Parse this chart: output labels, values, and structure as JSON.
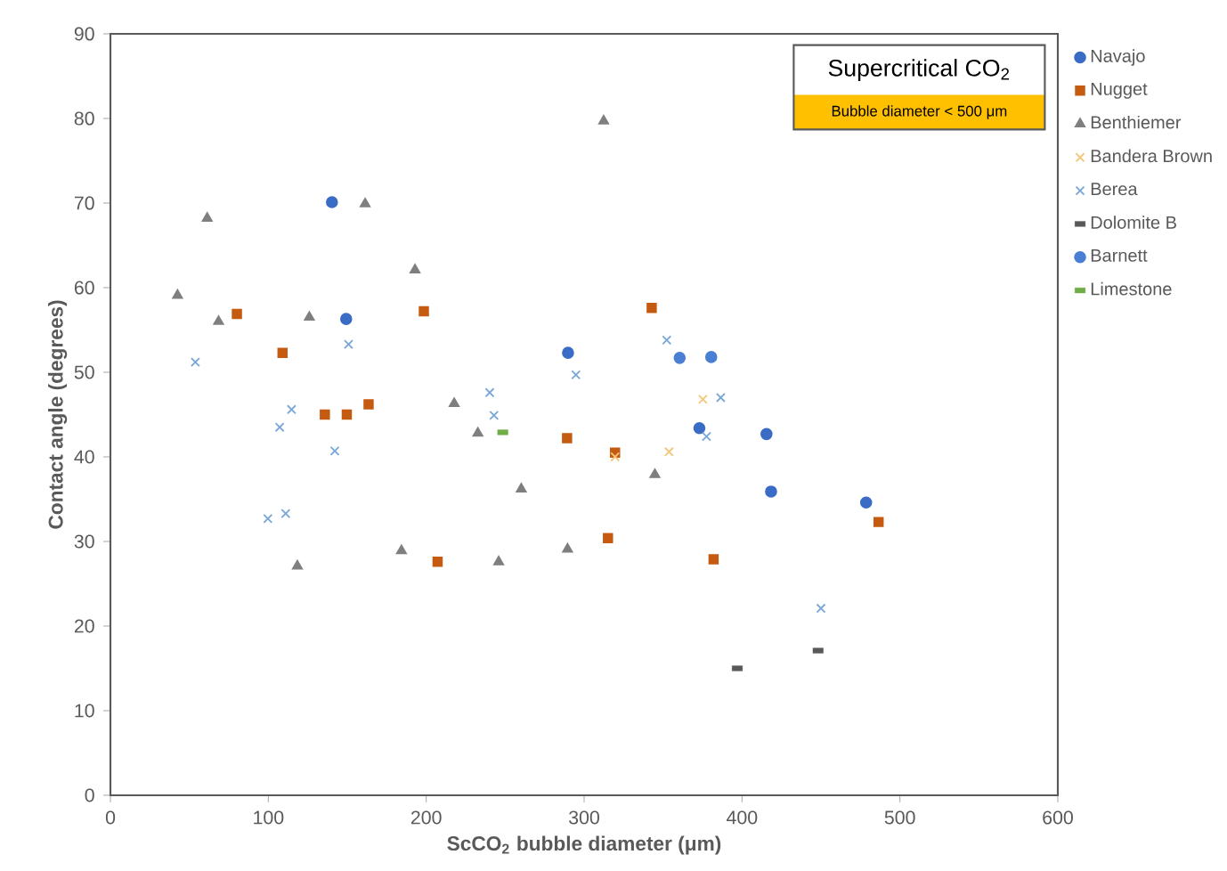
{
  "chart_data": {
    "type": "scatter",
    "xlabel": "ScCO$_{2}$ bubble diameter (μm)",
    "ylabel": "Contact angle (degrees)",
    "xlim": [
      0,
      600
    ],
    "xticks": [
      0,
      100,
      200,
      300,
      400,
      500,
      600
    ],
    "ylim": [
      0,
      90
    ],
    "yticks": [
      0,
      10,
      20,
      30,
      40,
      50,
      60,
      70,
      80,
      90
    ],
    "grid": false,
    "legend": "right",
    "annotations": [
      "Supercritical CO$_{2}$",
      "Bubble diameter < 500 μm"
    ],
    "series": [
      {
        "name": "Navajo",
        "color": "#3a6cc6",
        "marker": "circle",
        "x": [
          140.3,
          149.3,
          289.8,
          373,
          415.5,
          418.4,
          478.6
        ],
        "values": [
          70.1,
          56.3,
          52.3,
          43.4,
          42.7,
          35.9,
          34.6
        ]
      },
      {
        "name": "Nugget",
        "color": "#c55a11",
        "marker": "square",
        "x": [
          80.1,
          109,
          198.5,
          342.8,
          135.8,
          149.7,
          163.5,
          289.2,
          207.2,
          319.6,
          315.1,
          382,
          486.5
        ],
        "values": [
          56.9,
          52.3,
          57.2,
          57.6,
          45.0,
          45.0,
          46.2,
          42.2,
          27.6,
          40.5,
          30.4,
          27.9,
          32.3
        ]
      },
      {
        "name": "Benthiemer",
        "color": "#7f7f7f",
        "marker": "triangle",
        "x": [
          61.3,
          161.3,
          192.9,
          42.5,
          68.5,
          126,
          312.4,
          217.7,
          232.7,
          260.2,
          118.4,
          184.3,
          245.9,
          289.5,
          344.8
        ],
        "values": [
          68.2,
          69.9,
          62.1,
          59.1,
          56.0,
          56.5,
          79.7,
          46.3,
          42.8,
          36.2,
          27.1,
          28.9,
          27.6,
          29.1,
          37.9
        ]
      },
      {
        "name": "Bandera Brown",
        "color": "#f4c77a",
        "marker": "cross",
        "x": [
          319.6,
          353.8,
          375.2
        ],
        "values": [
          40.0,
          40.6,
          46.8
        ]
      },
      {
        "name": "Berea",
        "color": "#7aa7d8",
        "marker": "cross",
        "x": [
          53.8,
          150.8,
          294.8,
          240.2,
          352.3,
          114.7,
          107.2,
          142.1,
          99.7,
          111,
          242.9,
          386.5,
          377.5,
          450
        ],
        "values": [
          51.2,
          53.3,
          49.7,
          47.6,
          53.8,
          45.6,
          43.5,
          40.7,
          32.7,
          33.3,
          44.9,
          47.0,
          42.4,
          22.1
        ]
      },
      {
        "name": "Dolomite B",
        "color": "#595959",
        "x": [
          448.2,
          397
        ],
        "values": [
          17.1,
          15.0
        ]
      },
      {
        "name": "Barnett",
        "color": "#4a7fd4",
        "marker": "circle",
        "x": [
          360.5,
          380.5
        ],
        "values": [
          51.7,
          51.8
        ]
      },
      {
        "name": "Limestone",
        "color": "#70ad47",
        "x": [
          248.5
        ],
        "values": [
          42.9
        ]
      }
    ]
  }
}
